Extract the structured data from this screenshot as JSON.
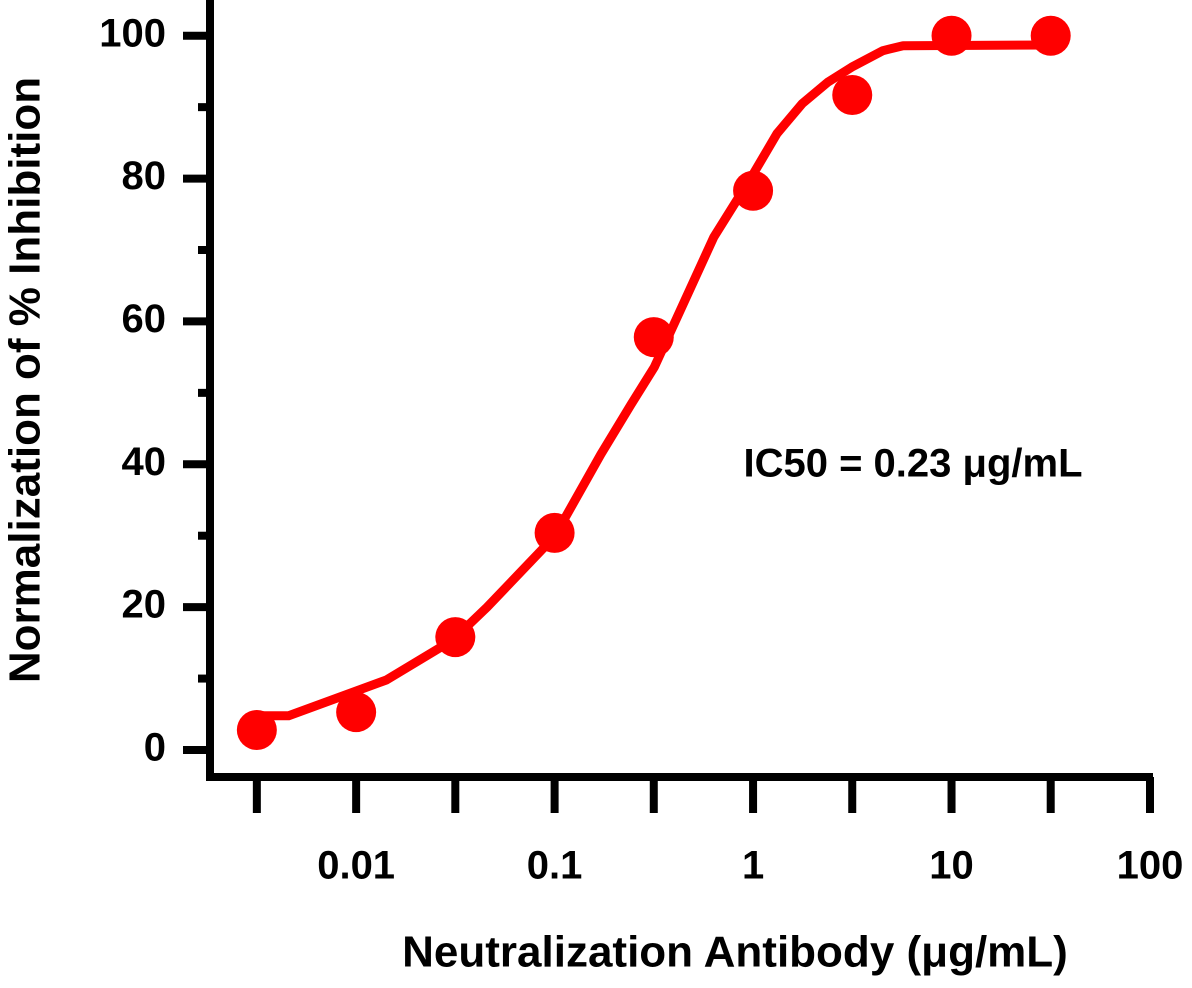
{
  "chart_data": {
    "type": "scatter",
    "x_label": "Neutralization Antibody (μg/mL)",
    "y_label": "Normalization of % Inhibition",
    "annotation": "IC50 = 0.23 μg/mL",
    "color": "#ff0000",
    "log_x": true,
    "xlim": [
      0.0019,
      100
    ],
    "xticks": [
      0.01,
      0.1,
      1,
      10,
      100
    ],
    "xminorticks": [
      0.00316,
      0.0316,
      0.316,
      3.16,
      31.6
    ],
    "ylim": [
      -2.8,
      105
    ],
    "yticks": [
      0,
      20,
      40,
      60,
      80,
      100
    ],
    "yminorticks": [
      10,
      30,
      50,
      70,
      90
    ],
    "points": {
      "x": [
        0.00316,
        0.01,
        0.0316,
        0.1,
        0.316,
        1,
        3.16,
        10,
        31.6
      ],
      "y": [
        2.8,
        5.3,
        15.8,
        30.4,
        57.8,
        78.3,
        91.7,
        100,
        100
      ]
    },
    "fit": {
      "x": [
        0.00314,
        0.00457,
        0.0142,
        0.0307,
        0.0457,
        0.1,
        0.171,
        0.243,
        0.318,
        0.634,
        1.0,
        1.32,
        1.77,
        2.38,
        3.14,
        4.5,
        5.7,
        31.4
      ],
      "y": [
        4.8,
        4.8,
        9.8,
        15.4,
        20,
        29.9,
        41.4,
        48.4,
        53.6,
        71.8,
        80.6,
        86.3,
        90.5,
        93.5,
        95.6,
        97.9,
        98.6,
        98.7
      ]
    }
  }
}
